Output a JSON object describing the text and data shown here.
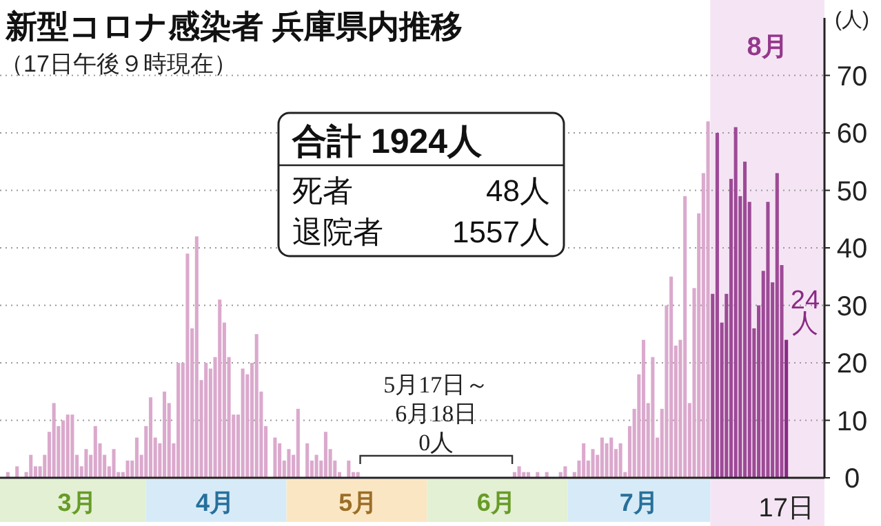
{
  "chart_data": {
    "type": "bar",
    "title": "新型コロナ感染者 兵庫県内推移",
    "subtitle": "（17日午後９時現在）",
    "ylabel": "(人)",
    "annotations": [
      "5月17日～\n6月18日\n0人",
      "合計 1924人",
      "死者 48人",
      "退院者 1557人",
      "8月"
    ],
    "categories": [
      null,
      null,
      null,
      null,
      null,
      null,
      null,
      null,
      null,
      null,
      null,
      null,
      null,
      null,
      null,
      "3月",
      null,
      null,
      null,
      null,
      null,
      null,
      null,
      null,
      null,
      null,
      null,
      null,
      null,
      null,
      null,
      null,
      null,
      null,
      null,
      null,
      null,
      null,
      null,
      null,
      null,
      null,
      null,
      null,
      null,
      "4月",
      null,
      null,
      null,
      null,
      null,
      null,
      null,
      null,
      null,
      null,
      null,
      null,
      null,
      null,
      null,
      null,
      null,
      null,
      null,
      null,
      null,
      null,
      null,
      null,
      null,
      null,
      null,
      null,
      null,
      null,
      "5月",
      null,
      null,
      null,
      null,
      null,
      null,
      null,
      null,
      null,
      null,
      null,
      null,
      null,
      null,
      null,
      null,
      null,
      null,
      null,
      null,
      null,
      null,
      null,
      null,
      null,
      null,
      null,
      null,
      null,
      "6月",
      null,
      null,
      null,
      null,
      null,
      null,
      null,
      null,
      null,
      null,
      null,
      null,
      null,
      null,
      null,
      null,
      null,
      null,
      null,
      null,
      null,
      null,
      null,
      null,
      null,
      null,
      null,
      null,
      null,
      null,
      "7月",
      null,
      null,
      null,
      null,
      null,
      null,
      null,
      null,
      null,
      null,
      null,
      null,
      null,
      null,
      null,
      null,
      null,
      null,
      null,
      null,
      null,
      null,
      null,
      null,
      null,
      null,
      null,
      null,
      null,
      null,
      null,
      "17日"
    ],
    "values": [
      1,
      0,
      2,
      0,
      1,
      4,
      2,
      2,
      4,
      8,
      13,
      9,
      10,
      11,
      11,
      4,
      2,
      5,
      4,
      9,
      6,
      4,
      2,
      5,
      1,
      1,
      3,
      3,
      7,
      4,
      9,
      14,
      7,
      6,
      15,
      13,
      6,
      20,
      20,
      39,
      26,
      42,
      17,
      20,
      19,
      21,
      31,
      27,
      21,
      11,
      11,
      19,
      18,
      20,
      25,
      15,
      9,
      0,
      7,
      6,
      3,
      5,
      4,
      12,
      0,
      6,
      3,
      4,
      3,
      8,
      5,
      3,
      1,
      0,
      3,
      1,
      1,
      0,
      0,
      0,
      0,
      0,
      0,
      0,
      0,
      0,
      0,
      0,
      0,
      0,
      0,
      0,
      0,
      0,
      0,
      0,
      0,
      0,
      0,
      0,
      0,
      0,
      0,
      0,
      0,
      0,
      0,
      0,
      0,
      0,
      1,
      2,
      1,
      1,
      0,
      1,
      0,
      1,
      0,
      0,
      1,
      2,
      0,
      1,
      3,
      6,
      3,
      5,
      4,
      7,
      6,
      7,
      5,
      6,
      1,
      9,
      12,
      18,
      24,
      13,
      21,
      7,
      12,
      30,
      35,
      23,
      24,
      49,
      13,
      33,
      46,
      53,
      62,
      32,
      60,
      27,
      32,
      52,
      61,
      49,
      55,
      48,
      26,
      30,
      36,
      48,
      34,
      53,
      37,
      24
    ],
    "colors": [
      "#dba9cd",
      "#dba9cd",
      "#dba9cd",
      "#dba9cd",
      "#dba9cd",
      "#dba9cd",
      "#dba9cd",
      "#dba9cd",
      "#dba9cd",
      "#dba9cd",
      "#dba9cd",
      "#dba9cd",
      "#dba9cd",
      "#dba9cd",
      "#dba9cd",
      "#dba9cd",
      "#dba9cd",
      "#dba9cd",
      "#dba9cd",
      "#dba9cd",
      "#dba9cd",
      "#dba9cd",
      "#dba9cd",
      "#dba9cd",
      "#dba9cd",
      "#dba9cd",
      "#dba9cd",
      "#dba9cd",
      "#dba9cd",
      "#dba9cd",
      "#dba9cd",
      "#dba9cd",
      "#dba9cd",
      "#dba9cd",
      "#dba9cd",
      "#dba9cd",
      "#dba9cd",
      "#dba9cd",
      "#dba9cd",
      "#dba9cd",
      "#dba9cd",
      "#dba9cd",
      "#dba9cd",
      "#dba9cd",
      "#dba9cd",
      "#dba9cd",
      "#dba9cd",
      "#dba9cd",
      "#dba9cd",
      "#dba9cd",
      "#dba9cd",
      "#dba9cd",
      "#dba9cd",
      "#dba9cd",
      "#dba9cd",
      "#dba9cd",
      "#dba9cd",
      "#dba9cd",
      "#dba9cd",
      "#dba9cd",
      "#dba9cd",
      "#dba9cd",
      "#dba9cd",
      "#dba9cd",
      "#dba9cd",
      "#dba9cd",
      "#dba9cd",
      "#dba9cd",
      "#dba9cd",
      "#dba9cd",
      "#dba9cd",
      "#dba9cd",
      "#dba9cd",
      "#dba9cd",
      "#dba9cd",
      "#dba9cd",
      "#dba9cd",
      "#dba9cd",
      "#dba9cd",
      "#dba9cd",
      "#dba9cd",
      "#dba9cd",
      "#dba9cd",
      "#dba9cd",
      "#dba9cd",
      "#dba9cd",
      "#dba9cd",
      "#dba9cd",
      "#dba9cd",
      "#dba9cd",
      "#dba9cd",
      "#dba9cd",
      "#dba9cd",
      "#dba9cd",
      "#dba9cd",
      "#dba9cd",
      "#dba9cd",
      "#dba9cd",
      "#dba9cd",
      "#dba9cd",
      "#dba9cd",
      "#dba9cd",
      "#dba9cd",
      "#dba9cd",
      "#dba9cd",
      "#dba9cd",
      "#dba9cd",
      "#dba9cd",
      "#dba9cd",
      "#dba9cd",
      "#dba9cd",
      "#dba9cd",
      "#dba9cd",
      "#dba9cd",
      "#dba9cd",
      "#dba9cd",
      "#dba9cd",
      "#dba9cd",
      "#dba9cd",
      "#dba9cd",
      "#dba9cd",
      "#dba9cd",
      "#dba9cd",
      "#dba9cd",
      "#dba9cd",
      "#dba9cd",
      "#dba9cd",
      "#dba9cd",
      "#dba9cd",
      "#dba9cd",
      "#dba9cd",
      "#dba9cd",
      "#dba9cd",
      "#dba9cd",
      "#dba9cd",
      "#dba9cd",
      "#dba9cd",
      "#dba9cd",
      "#dba9cd",
      "#dba9cd",
      "#dba9cd",
      "#dba9cd",
      "#dba9cd",
      "#dba9cd",
      "#dba9cd",
      "#dba9cd",
      "#dba9cd",
      "#dba9cd",
      "#dba9cd",
      "#dba9cd",
      "#dba9cd",
      "#dba9cd",
      "#dba9cd",
      "#9d4a96",
      "#9d4a96",
      "#9d4a96",
      "#9d4a96",
      "#9d4a96",
      "#9d4a96",
      "#9d4a96",
      "#9d4a96",
      "#9d4a96",
      "#9d4a96",
      "#9d4a96",
      "#9d4a96",
      "#9d4a96",
      "#9d4a96",
      "#9d4a96",
      "#9d4a96",
      "#8a2b86"
    ],
    "value_labels": [
      null,
      null,
      null,
      null,
      null,
      null,
      null,
      null,
      null,
      null,
      null,
      null,
      null,
      null,
      null,
      null,
      null,
      null,
      null,
      null,
      null,
      null,
      null,
      null,
      null,
      null,
      null,
      null,
      null,
      null,
      null,
      null,
      null,
      null,
      null,
      null,
      null,
      null,
      null,
      null,
      null,
      null,
      null,
      null,
      null,
      null,
      null,
      null,
      null,
      null,
      null,
      null,
      null,
      null,
      null,
      null,
      null,
      null,
      null,
      null,
      null,
      null,
      null,
      null,
      null,
      null,
      null,
      null,
      null,
      null,
      null,
      null,
      null,
      null,
      null,
      null,
      null,
      null,
      null,
      null,
      null,
      null,
      null,
      null,
      null,
      null,
      null,
      null,
      null,
      null,
      null,
      null,
      null,
      null,
      null,
      null,
      null,
      null,
      null,
      null,
      null,
      null,
      null,
      null,
      null,
      null,
      null,
      null,
      null,
      null,
      null,
      null,
      null,
      null,
      null,
      null,
      null,
      null,
      null,
      null,
      null,
      null,
      null,
      null,
      null,
      null,
      null,
      null,
      null,
      null,
      null,
      null,
      null,
      null,
      null,
      null,
      null,
      null,
      null,
      null,
      null,
      null,
      null,
      null,
      null,
      null,
      null,
      null,
      null,
      null,
      null,
      null,
      null,
      null,
      null,
      null,
      null,
      null,
      null,
      null,
      null,
      null,
      null,
      null,
      null,
      null,
      null,
      null,
      null,
      "24\n人"
    ],
    "ylim": [
      0,
      80
    ],
    "yticks": [
      0,
      10,
      20,
      30,
      40,
      50,
      60,
      70
    ],
    "grid": "y"
  }
}
